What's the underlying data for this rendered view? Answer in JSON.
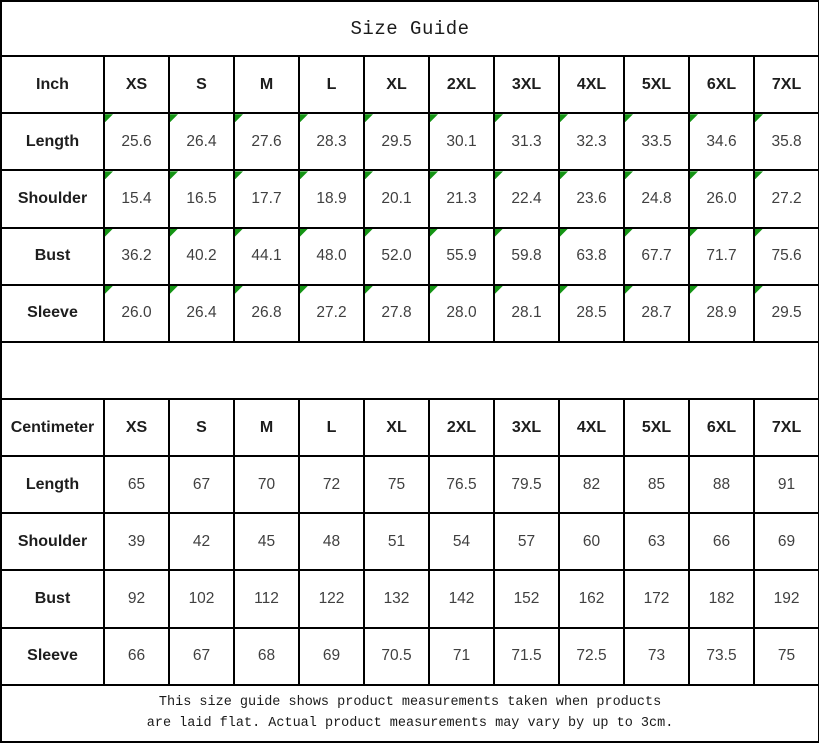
{
  "title": "Size Guide",
  "colors": {
    "flag_green": "#149414",
    "border": "#000000",
    "background": "#ffffff"
  },
  "inch_table": {
    "unit_label": "Inch",
    "sizes": [
      "XS",
      "S",
      "M",
      "L",
      "XL",
      "2XL",
      "3XL",
      "4XL",
      "5XL",
      "6XL",
      "7XL"
    ],
    "has_flags": true,
    "rows": [
      {
        "label": "Length",
        "values": [
          "25.6",
          "26.4",
          "27.6",
          "28.3",
          "29.5",
          "30.1",
          "31.3",
          "32.3",
          "33.5",
          "34.6",
          "35.8"
        ]
      },
      {
        "label": "Shoulder",
        "values": [
          "15.4",
          "16.5",
          "17.7",
          "18.9",
          "20.1",
          "21.3",
          "22.4",
          "23.6",
          "24.8",
          "26.0",
          "27.2"
        ]
      },
      {
        "label": "Bust",
        "values": [
          "36.2",
          "40.2",
          "44.1",
          "48.0",
          "52.0",
          "55.9",
          "59.8",
          "63.8",
          "67.7",
          "71.7",
          "75.6"
        ]
      },
      {
        "label": "Sleeve",
        "values": [
          "26.0",
          "26.4",
          "26.8",
          "27.2",
          "27.8",
          "28.0",
          "28.1",
          "28.5",
          "28.7",
          "28.9",
          "29.5"
        ]
      }
    ]
  },
  "cm_table": {
    "unit_label": "Centimeter",
    "sizes": [
      "XS",
      "S",
      "M",
      "L",
      "XL",
      "2XL",
      "3XL",
      "4XL",
      "5XL",
      "6XL",
      "7XL"
    ],
    "has_flags": false,
    "rows": [
      {
        "label": "Length",
        "values": [
          "65",
          "67",
          "70",
          "72",
          "75",
          "76.5",
          "79.5",
          "82",
          "85",
          "88",
          "91"
        ]
      },
      {
        "label": "Shoulder",
        "values": [
          "39",
          "42",
          "45",
          "48",
          "51",
          "54",
          "57",
          "60",
          "63",
          "66",
          "69"
        ]
      },
      {
        "label": "Bust",
        "values": [
          "92",
          "102",
          "112",
          "122",
          "132",
          "142",
          "152",
          "162",
          "172",
          "182",
          "192"
        ]
      },
      {
        "label": "Sleeve",
        "values": [
          "66",
          "67",
          "68",
          "69",
          "70.5",
          "71",
          "71.5",
          "72.5",
          "73",
          "73.5",
          "75"
        ]
      }
    ]
  },
  "footer": {
    "line1": "This size guide shows product measurements taken when products",
    "line2": "are laid flat. Actual product measurements may vary by up to 3cm."
  }
}
